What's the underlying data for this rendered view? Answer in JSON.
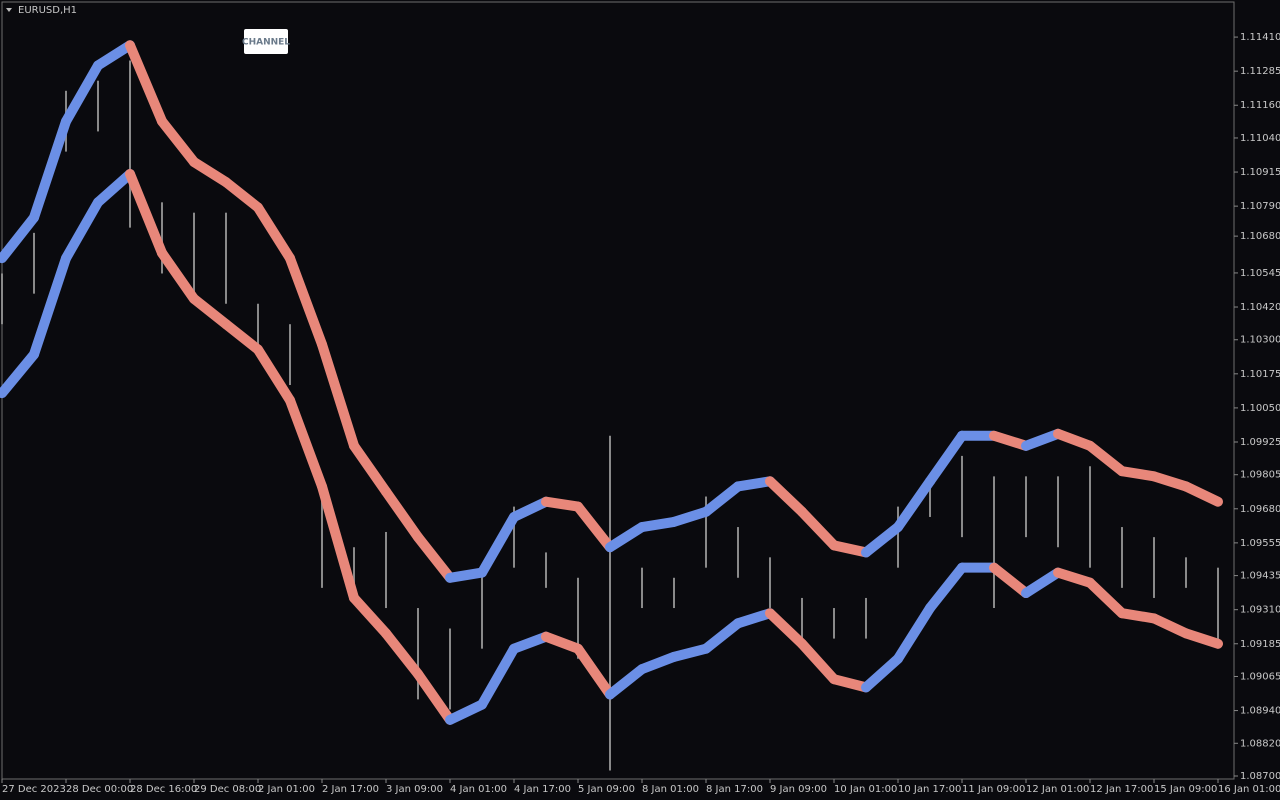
{
  "chart_data": {
    "type": "candlestick",
    "title": "EURUSD,H1",
    "badge": "CHANNEL",
    "x": [
      0,
      8,
      16,
      24,
      32,
      40,
      48,
      56,
      64,
      72,
      80,
      88,
      96,
      104,
      112,
      120,
      128,
      136,
      144,
      152,
      160,
      168,
      176,
      184,
      192,
      200,
      208,
      216,
      224,
      232,
      240,
      248,
      256,
      264,
      272,
      280,
      288,
      296,
      304
    ],
    "xlim": [
      0,
      308
    ],
    "xticks": [
      {
        "value": 0,
        "label": "27 Dec 2023"
      },
      {
        "value": 16,
        "label": "28 Dec 00:00"
      },
      {
        "value": 32,
        "label": "28 Dec 16:00"
      },
      {
        "value": 48,
        "label": "29 Dec 08:00"
      },
      {
        "value": 64,
        "label": "2 Jan 01:00"
      },
      {
        "value": 80,
        "label": "2 Jan 17:00"
      },
      {
        "value": 96,
        "label": "3 Jan 09:00"
      },
      {
        "value": 112,
        "label": "4 Jan 01:00"
      },
      {
        "value": 128,
        "label": "4 Jan 17:00"
      },
      {
        "value": 144,
        "label": "5 Jan 09:00"
      },
      {
        "value": 160,
        "label": "8 Jan 01:00"
      },
      {
        "value": 176,
        "label": "8 Jan 17:00"
      },
      {
        "value": 192,
        "label": "9 Jan 09:00"
      },
      {
        "value": 208,
        "label": "10 Jan 01:00"
      },
      {
        "value": 224,
        "label": "10 Jan 17:00"
      },
      {
        "value": 240,
        "label": "11 Jan 09:00"
      },
      {
        "value": 256,
        "label": "12 Jan 01:00"
      },
      {
        "value": 272,
        "label": "12 Jan 17:00"
      },
      {
        "value": 288,
        "label": "15 Jan 09:00"
      },
      {
        "value": 304,
        "label": "16 Jan 01:00"
      }
    ],
    "ylim": [
      1.08689,
      1.11535
    ],
    "yticks": [
      {
        "value": 1.1141,
        "label": "1.11410"
      },
      1.11285,
      {
        "value": 1.1116,
        "label": "1.11160"
      },
      {
        "value": 1.1104,
        "label": "1.11040"
      },
      1.10915,
      {
        "value": 1.1079,
        "label": "1.10790"
      },
      {
        "value": 1.1068,
        "label": "1.10680"
      },
      1.10545,
      {
        "value": 1.1042,
        "label": "1.10420"
      },
      {
        "value": 1.103,
        "label": "1.10300"
      },
      1.10175,
      {
        "value": 1.1005,
        "label": "1.10050"
      },
      1.09925,
      1.09805,
      {
        "value": 1.0968,
        "label": "1.09680"
      },
      1.09555,
      1.09435,
      {
        "value": 1.0931,
        "label": "1.09310"
      },
      1.09185,
      1.09065,
      {
        "value": 1.0894,
        "label": "1.08940"
      },
      {
        "value": 1.0882,
        "label": "1.08820"
      },
      {
        "value": 1.087,
        "label": "1.08700"
      }
    ],
    "high": [
      1.10543,
      1.10692,
      1.11213,
      1.1125,
      1.11324,
      1.10804,
      1.10766,
      1.10766,
      1.10432,
      1.10357,
      1.09799,
      1.09539,
      1.09595,
      1.09316,
      1.09241,
      1.09464,
      1.09688,
      1.0952,
      1.09427,
      1.09948,
      1.09464,
      1.09427,
      1.09725,
      1.09613,
      1.09502,
      1.09353,
      1.09316,
      1.09353,
      1.09688,
      1.09762,
      1.09874,
      1.09799,
      1.09799,
      1.09799,
      1.09836,
      1.09613,
      1.09576,
      1.09502,
      1.09464
    ],
    "low": [
      1.10357,
      1.10469,
      1.1099,
      1.11064,
      1.10711,
      1.10543,
      1.10469,
      1.10432,
      1.10246,
      1.10134,
      1.0939,
      1.0939,
      1.09316,
      1.08981,
      1.08944,
      1.09167,
      1.09464,
      1.0939,
      1.0913,
      1.0872,
      1.09316,
      1.09316,
      1.09464,
      1.09427,
      1.09316,
      1.09167,
      1.09204,
      1.09204,
      1.09464,
      1.0965,
      1.09576,
      1.09316,
      1.09576,
      1.09539,
      1.09464,
      1.0939,
      1.09353,
      1.0939,
      1.09167
    ],
    "candle_color": "#8a8a8a",
    "series": [
      {
        "values": [
          1.10599,
          1.10748,
          1.11101,
          1.11306,
          1.1138,
          1.11101,
          1.10952,
          1.10878,
          1.10785,
          1.10599,
          1.10283,
          1.09911,
          1.09743,
          1.09576,
          1.09427,
          1.09446,
          1.0965,
          1.09706,
          1.09688,
          1.09539,
          1.09613,
          1.09632,
          1.09669,
          1.09762,
          1.09781,
          1.09669,
          1.09546,
          1.0952,
          1.09613,
          1.09781,
          1.09948,
          1.09948,
          1.09911,
          1.09955,
          1.09911,
          1.09818,
          1.09799,
          1.09762,
          1.09706
        ]
      },
      {
        "values": [
          1.10104,
          1.10246,
          1.10599,
          1.10804,
          1.10908,
          1.10618,
          1.1045,
          1.10357,
          1.10264,
          1.10078,
          1.09762,
          1.09353,
          1.09223,
          1.09074,
          1.08906,
          1.08962,
          1.09167,
          1.09211,
          1.09167,
          1.08999,
          1.09092,
          1.09137,
          1.09167,
          1.0926,
          1.09297,
          1.09185,
          1.09055,
          1.09025,
          1.0913,
          1.09316,
          1.09464,
          1.09464,
          1.09371,
          1.09446,
          1.09409,
          1.09297,
          1.09278,
          1.09223,
          1.09185
        ]
      }
    ],
    "up_color": "#6b8fe6",
    "down_color": "#e8877a"
  }
}
